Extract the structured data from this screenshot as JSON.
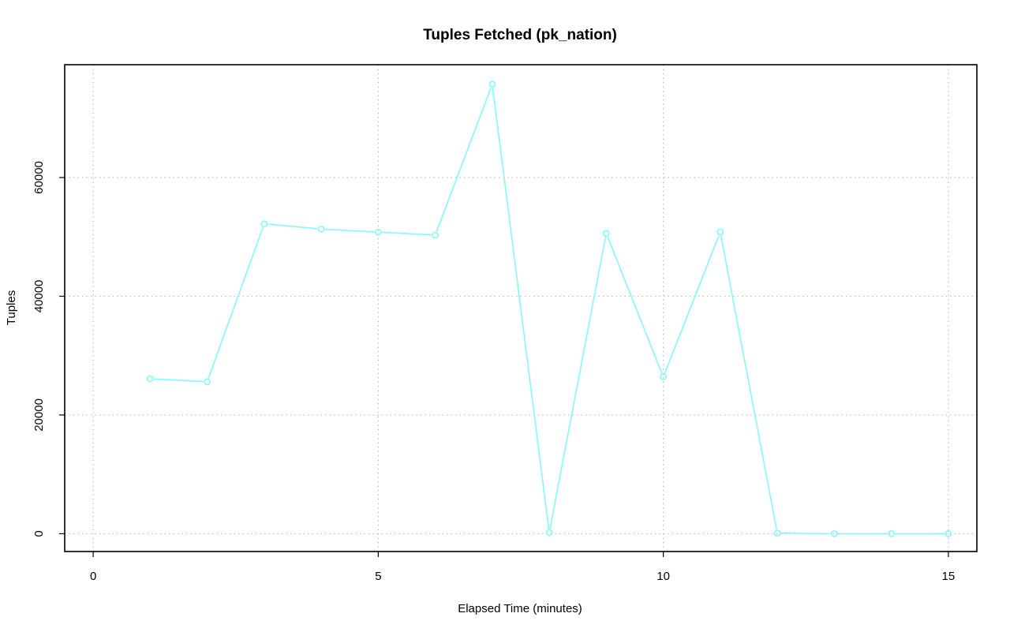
{
  "chart_data": {
    "type": "line",
    "title": "Tuples Fetched (pk_nation)",
    "xlabel": "Elapsed Time (minutes)",
    "ylabel": "Tuples",
    "xlim": [
      -0.5,
      15.5
    ],
    "ylim": [
      -3000,
      79000
    ],
    "xticks": [
      0,
      5,
      10,
      15
    ],
    "yticks": [
      0,
      20000,
      40000,
      60000
    ],
    "grid": true,
    "color": "#7ffbff",
    "series": [
      {
        "x": [
          1,
          2,
          3,
          4,
          5,
          6,
          7,
          8,
          9,
          10,
          11,
          12,
          13,
          14,
          15
        ],
        "values": [
          26100,
          25600,
          52200,
          51300,
          50800,
          50300,
          75700,
          200,
          50600,
          26400,
          50800,
          100,
          0,
          0,
          0
        ]
      }
    ]
  }
}
